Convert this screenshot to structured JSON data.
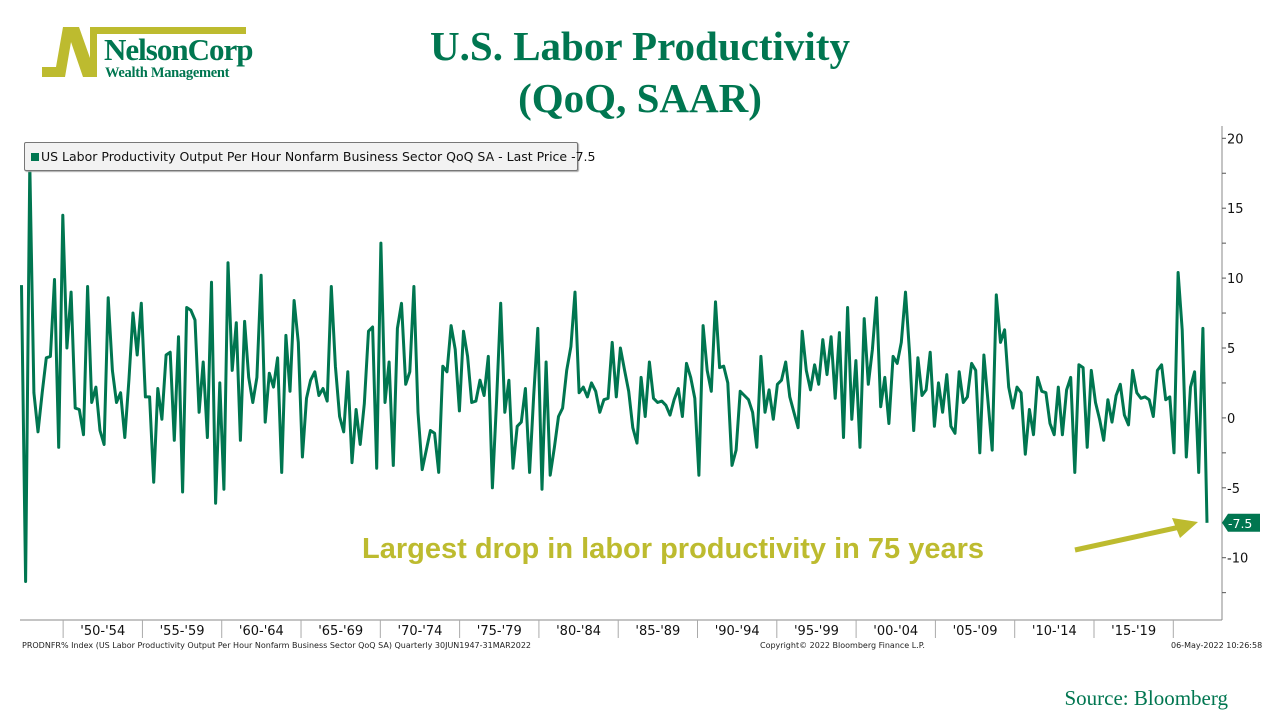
{
  "logo": {
    "name": "NelsonCorp",
    "sub": "Wealth Management",
    "color": "#bdbb2f"
  },
  "title": {
    "line1": "U.S. Labor Productivity",
    "line2": "(QoQ, SAAR)"
  },
  "legend": {
    "label": "US Labor Productivity Output Per Hour Nonfarm Business Sector QoQ SA - Last Price -7.5"
  },
  "annotation": {
    "text": "Largest drop in labor productivity in 75 years"
  },
  "footer": {
    "left": "PRODNFR% Index (US Labor Productivity Output Per Hour Nonfarm Business Sector QoQ SA)  Quarterly 30JUN1947-31MAR2022",
    "center": "Copyright© 2022 Bloomberg Finance L.P.",
    "right": "06-May-2022 10:26:58"
  },
  "source": "Source: Bloomberg",
  "chart_data": {
    "type": "line",
    "frequency": "quarterly",
    "x_start": "1947Q2",
    "x_end": "2022Q1",
    "xlim": [
      1947.375,
      2022.125
    ],
    "ylim": [
      -14,
      21
    ],
    "y_ticks": [
      20,
      15,
      10,
      5,
      0,
      -5,
      -10
    ],
    "y_axis_side": "right",
    "x_tick_labels": [
      "'50-'54",
      "'55-'59",
      "'60-'64",
      "'65-'69",
      "'70-'74",
      "'75-'79",
      "'80-'84",
      "'85-'89",
      "'90-'94",
      "'95-'99",
      "'00-'04",
      "'05-'09",
      "'10-'14",
      "'15-'19"
    ],
    "x_tick_starts": [
      1950,
      1955,
      1960,
      1965,
      1970,
      1975,
      1980,
      1985,
      1990,
      1995,
      2000,
      2005,
      2010,
      2015
    ],
    "last_value_label": "-7.5",
    "legend_position": "top-left",
    "grid": false,
    "line_color": "#007650",
    "series": [
      {
        "name": "US Labor Productivity Output Per Hour Nonfarm Business Sector QoQ SA",
        "values": [
          9.5,
          -11.7,
          18.1,
          1.8,
          -1.0,
          1.8,
          4.3,
          4.4,
          9.9,
          -2.1,
          14.5,
          5.0,
          9.0,
          0.7,
          0.6,
          -1.2,
          9.4,
          1.1,
          2.2,
          -0.9,
          -1.9,
          8.6,
          3.4,
          1.1,
          1.8,
          -1.4,
          2.7,
          7.5,
          4.5,
          8.2,
          1.5,
          1.5,
          -4.6,
          2.1,
          -0.1,
          4.5,
          4.7,
          -1.6,
          5.8,
          -5.3,
          7.9,
          7.7,
          7.0,
          0.4,
          4.0,
          -1.4,
          9.7,
          -6.1,
          2.5,
          -5.1,
          11.1,
          3.4,
          6.8,
          -1.6,
          6.9,
          2.9,
          1.1,
          2.9,
          10.2,
          -0.3,
          3.2,
          2.2,
          4.3,
          -3.9,
          5.9,
          1.9,
          8.4,
          5.4,
          -2.8,
          1.4,
          2.7,
          3.3,
          1.6,
          2.1,
          1.2,
          9.4,
          3.7,
          0.1,
          -1.0,
          3.3,
          -3.2,
          0.6,
          -1.9,
          1.0,
          6.2,
          6.5,
          -3.6,
          12.5,
          1.1,
          4.0,
          -3.4,
          6.4,
          8.2,
          2.4,
          3.3,
          9.4,
          0.4,
          -3.7,
          -2.3,
          -0.9,
          -1.1,
          -3.9,
          3.7,
          3.3,
          6.6,
          4.9,
          0.5,
          6.2,
          4.4,
          1.1,
          1.2,
          2.7,
          1.6,
          4.4,
          -5.0,
          1.1,
          8.2,
          0.4,
          2.7,
          -3.6,
          -0.6,
          -0.3,
          2.1,
          -3.9,
          1.6,
          6.4,
          -5.1,
          4.0,
          -4.1,
          -2.1,
          0.1,
          0.7,
          3.4,
          5.1,
          9.0,
          1.8,
          2.2,
          1.5,
          2.5,
          1.9,
          0.4,
          1.3,
          1.4,
          5.4,
          1.5,
          5.0,
          3.4,
          1.9,
          -0.7,
          -1.8,
          2.9,
          0.1,
          4.0,
          1.4,
          1.1,
          1.2,
          0.9,
          0.2,
          1.3,
          2.1,
          0.1,
          3.9,
          2.9,
          1.4,
          -4.1,
          6.6,
          3.4,
          1.9,
          8.3,
          3.6,
          3.7,
          2.5,
          -3.4,
          -2.3,
          1.9,
          1.6,
          1.3,
          0.4,
          -2.1,
          4.4,
          0.4,
          2.0,
          -0.1,
          2.4,
          2.7,
          4.0,
          1.5,
          0.4,
          -0.7,
          6.2,
          3.4,
          2.0,
          3.8,
          2.4,
          5.6,
          3.1,
          5.8,
          1.4,
          6.1,
          -1.4,
          7.9,
          -0.1,
          4.1,
          -2.1,
          7.1,
          2.4,
          4.9,
          8.6,
          0.8,
          2.9,
          -0.4,
          4.4,
          3.9,
          5.4,
          9.0,
          4.6,
          -0.9,
          4.3,
          1.6,
          2.0,
          4.7,
          -0.6,
          2.5,
          0.4,
          3.1,
          -0.6,
          -1.1,
          3.3,
          1.1,
          1.5,
          3.9,
          3.4,
          -2.5,
          4.5,
          1.1,
          -2.3,
          8.8,
          5.4,
          6.3,
          2.2,
          0.7,
          2.2,
          1.8,
          -2.6,
          0.6,
          -1.2,
          2.9,
          1.9,
          1.8,
          -0.4,
          -1.2,
          2.2,
          -1.2,
          2.0,
          2.9,
          -3.9,
          3.8,
          3.6,
          -2.1,
          3.4,
          1.1,
          -0.1,
          -1.6,
          1.3,
          -0.3,
          1.6,
          2.4,
          0.2,
          -0.5,
          3.4,
          1.8,
          1.4,
          1.5,
          1.3,
          0.1,
          3.4,
          3.8,
          1.3,
          1.5,
          -2.5,
          10.4,
          6.3,
          -2.8,
          2.2,
          3.3,
          -3.9,
          6.4,
          -7.5
        ]
      }
    ]
  }
}
